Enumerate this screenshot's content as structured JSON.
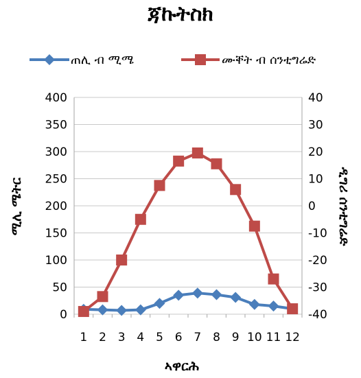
{
  "chart_data": {
    "type": "line",
    "title": "ጃኩትስክ",
    "xlabel": "ኣዋርሕ",
    "ylabel_left": "ሚሊ ሜትር",
    "ylabel_right": "ዲግሪ ሰንቲግሬድ",
    "categories": [
      "1",
      "2",
      "3",
      "4",
      "5",
      "6",
      "7",
      "8",
      "9",
      "10",
      "11",
      "12"
    ],
    "ylim_left": [
      0,
      400
    ],
    "yticks_left": [
      "0",
      "50",
      "100",
      "150",
      "200",
      "250",
      "300",
      "350",
      "400"
    ],
    "ylim_right": [
      -40,
      40
    ],
    "yticks_right": [
      "-40",
      "-30",
      "-20",
      "-10",
      "0",
      "10",
      "20",
      "30",
      "40"
    ],
    "grid": "horizontal",
    "legend_position": "top",
    "series": [
      {
        "name": "ጠሊ ብ ሚሜ",
        "axis": "left",
        "marker": "diamond",
        "color": "#4a7ebb",
        "values": [
          9,
          8,
          7,
          8,
          20,
          35,
          39,
          36,
          31,
          18,
          15,
          10
        ]
      },
      {
        "name": "ሙቐት ብ ሰንቲግሬድ",
        "axis": "right",
        "marker": "square",
        "color": "#be4b48",
        "values": [
          -39,
          -33.5,
          -20,
          -5,
          7.5,
          16.5,
          19.5,
          15.5,
          6,
          -7.5,
          -27,
          -38
        ]
      }
    ]
  }
}
